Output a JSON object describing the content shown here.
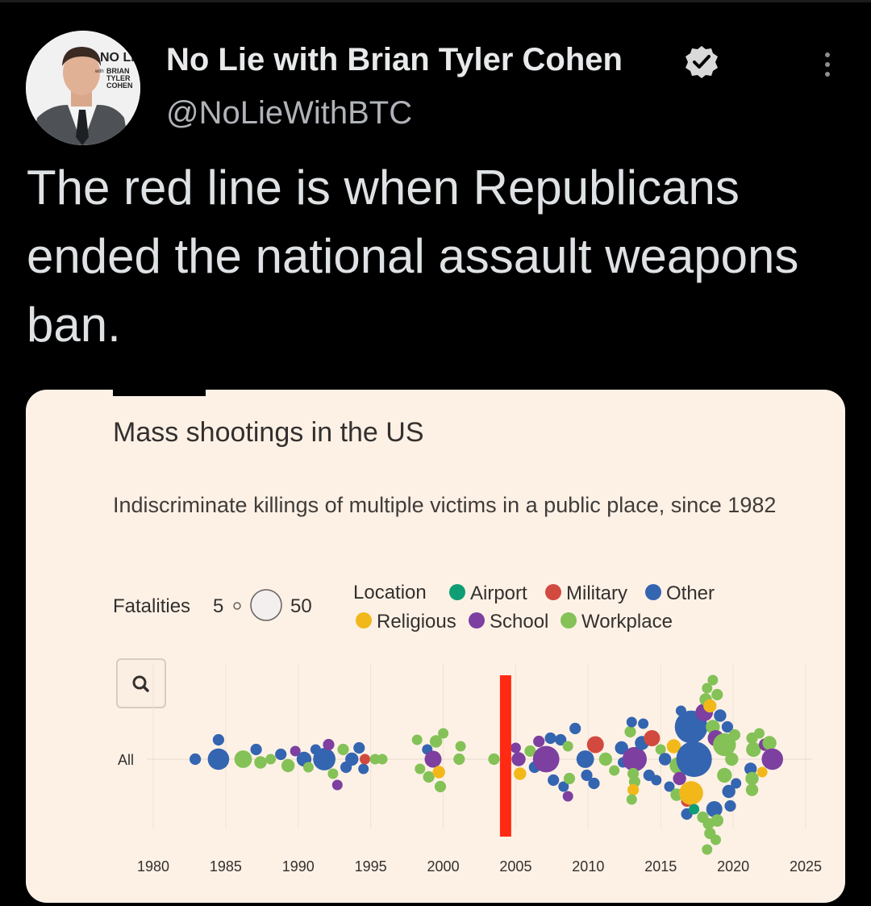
{
  "tweet": {
    "author_name": "No Lie with Brian Tyler Cohen",
    "handle": "@NoLieWithBTC",
    "text": "The red line is when Republicans ended the national assault weapons ban.",
    "avatar_logo_text": "NO LIE with BRIAN TYLER COHEN",
    "verified_icon": "verified-badge-icon",
    "menu_icon": "more-options-icon"
  },
  "colors": {
    "background": "#000000",
    "card": "#fdf1e6",
    "Airport": "#0f9d73",
    "Military": "#d2493f",
    "Other": "#3465b0",
    "Religious": "#f2b81a",
    "School": "#7d3fa0",
    "Workplace": "#84c257",
    "red_line": "#ff2a14"
  },
  "chart_data": {
    "type": "scatter",
    "subtype": "beeswarm",
    "title": "Mass shootings in the US",
    "subtitle": "Indiscriminate killings of multiple victims in a public place, since 1982",
    "size_legend": {
      "label": "Fatalities",
      "min": 5,
      "max": 50
    },
    "color_legend": {
      "title": "Location",
      "entries": [
        "Airport",
        "Military",
        "Other",
        "Religious",
        "School",
        "Workplace"
      ]
    },
    "row_label": "All",
    "x_ticks": [
      "1980",
      "1985",
      "1990",
      "1995",
      "2000",
      "2005",
      "2010",
      "2015",
      "2020",
      "2025"
    ],
    "xlim": [
      1980,
      2025
    ],
    "grid": true,
    "red_line_year": 2004.3,
    "points": [
      {
        "x": 1982.9,
        "o": 0,
        "f": 6,
        "c": "Other"
      },
      {
        "x": 1984.5,
        "o": -1.2,
        "f": 6,
        "c": "Other"
      },
      {
        "x": 1984.5,
        "o": 0,
        "f": 21,
        "c": "Other"
      },
      {
        "x": 1986.2,
        "o": 0,
        "f": 14,
        "c": "Workplace"
      },
      {
        "x": 1987.1,
        "o": -0.6,
        "f": 6,
        "c": "Other"
      },
      {
        "x": 1987.4,
        "o": 0.2,
        "f": 7,
        "c": "Workplace"
      },
      {
        "x": 1988.1,
        "o": 0,
        "f": 5,
        "c": "Workplace"
      },
      {
        "x": 1988.8,
        "o": -0.3,
        "f": 6,
        "c": "Other"
      },
      {
        "x": 1989.3,
        "o": 0.4,
        "f": 8,
        "c": "Workplace"
      },
      {
        "x": 1989.8,
        "o": -0.5,
        "f": 5,
        "c": "School"
      },
      {
        "x": 1990.4,
        "o": 0,
        "f": 10,
        "c": "Other"
      },
      {
        "x": 1990.7,
        "o": 0.5,
        "f": 5,
        "c": "Workplace"
      },
      {
        "x": 1991.2,
        "o": -0.6,
        "f": 5,
        "c": "Other"
      },
      {
        "x": 1991.8,
        "o": 0,
        "f": 23,
        "c": "Other"
      },
      {
        "x": 1992.1,
        "o": -0.9,
        "f": 6,
        "c": "School"
      },
      {
        "x": 1992.4,
        "o": 0.9,
        "f": 5,
        "c": "Workplace"
      },
      {
        "x": 1992.7,
        "o": 1.6,
        "f": 5,
        "c": "School"
      },
      {
        "x": 1993.1,
        "o": -0.6,
        "f": 6,
        "c": "Workplace"
      },
      {
        "x": 1993.3,
        "o": 0.5,
        "f": 6,
        "c": "Other"
      },
      {
        "x": 1993.7,
        "o": 0,
        "f": 8,
        "c": "Other"
      },
      {
        "x": 1994.2,
        "o": -0.7,
        "f": 6,
        "c": "Other"
      },
      {
        "x": 1994.5,
        "o": 0.6,
        "f": 5,
        "c": "Other"
      },
      {
        "x": 1994.6,
        "o": 0,
        "f": 5,
        "c": "Military"
      },
      {
        "x": 1995.3,
        "o": 0,
        "f": 5,
        "c": "Workplace"
      },
      {
        "x": 1995.8,
        "o": 0,
        "f": 5,
        "c": "Workplace"
      },
      {
        "x": 1998.2,
        "o": -1.2,
        "f": 5,
        "c": "Workplace"
      },
      {
        "x": 1998.4,
        "o": 0.6,
        "f": 5,
        "c": "Workplace"
      },
      {
        "x": 1998.9,
        "o": -0.6,
        "f": 5,
        "c": "Other"
      },
      {
        "x": 1999.0,
        "o": 1.1,
        "f": 6,
        "c": "Workplace"
      },
      {
        "x": 1999.3,
        "o": 0,
        "f": 13,
        "c": "School"
      },
      {
        "x": 1999.5,
        "o": -1.1,
        "f": 7,
        "c": "Workplace"
      },
      {
        "x": 1999.7,
        "o": 0.8,
        "f": 7,
        "c": "Religious"
      },
      {
        "x": 1999.8,
        "o": 1.7,
        "f": 6,
        "c": "Workplace"
      },
      {
        "x": 2000.0,
        "o": -1.6,
        "f": 5,
        "c": "Workplace"
      },
      {
        "x": 2001.1,
        "o": 0,
        "f": 6,
        "c": "Workplace"
      },
      {
        "x": 2001.2,
        "o": -0.8,
        "f": 5,
        "c": "Workplace"
      },
      {
        "x": 2003.5,
        "o": 0,
        "f": 6,
        "c": "Workplace"
      },
      {
        "x": 2005.0,
        "o": -0.7,
        "f": 5,
        "c": "School"
      },
      {
        "x": 2005.2,
        "o": 0,
        "f": 9,
        "c": "School"
      },
      {
        "x": 2005.3,
        "o": 0.9,
        "f": 7,
        "c": "Religious"
      },
      {
        "x": 2006.0,
        "o": -0.5,
        "f": 6,
        "c": "Workplace"
      },
      {
        "x": 2006.3,
        "o": 0.5,
        "f": 6,
        "c": "Other"
      },
      {
        "x": 2006.6,
        "o": -1.1,
        "f": 6,
        "c": "School"
      },
      {
        "x": 2007.1,
        "o": 0,
        "f": 32,
        "c": "School"
      },
      {
        "x": 2007.4,
        "o": -1.3,
        "f": 6,
        "c": "Other"
      },
      {
        "x": 2007.6,
        "o": 1.3,
        "f": 6,
        "c": "Other"
      },
      {
        "x": 2008.1,
        "o": -1.2,
        "f": 6,
        "c": "Other"
      },
      {
        "x": 2008.3,
        "o": 1.7,
        "f": 5,
        "c": "Other"
      },
      {
        "x": 2008.6,
        "o": -0.8,
        "f": 5,
        "c": "Workplace"
      },
      {
        "x": 2008.7,
        "o": 1.2,
        "f": 6,
        "c": "Workplace"
      },
      {
        "x": 2008.6,
        "o": 2.3,
        "f": 5,
        "c": "School"
      },
      {
        "x": 2009.1,
        "o": -1.9,
        "f": 6,
        "c": "Other"
      },
      {
        "x": 2009.8,
        "o": 0,
        "f": 14,
        "c": "Other"
      },
      {
        "x": 2009.9,
        "o": 1.0,
        "f": 6,
        "c": "Other"
      },
      {
        "x": 2010.5,
        "o": -0.9,
        "f": 13,
        "c": "Military"
      },
      {
        "x": 2010.4,
        "o": 1.5,
        "f": 6,
        "c": "Other"
      },
      {
        "x": 2011.2,
        "o": 0,
        "f": 8,
        "c": "Workplace"
      },
      {
        "x": 2011.8,
        "o": 0.7,
        "f": 5,
        "c": "Workplace"
      },
      {
        "x": 2012.3,
        "o": -0.7,
        "f": 8,
        "c": "Other"
      },
      {
        "x": 2012.4,
        "o": 0.2,
        "f": 5,
        "c": "Other"
      },
      {
        "x": 2012.9,
        "o": -1.7,
        "f": 6,
        "c": "Workplace"
      },
      {
        "x": 2013.0,
        "o": -2.3,
        "f": 5,
        "c": "Other"
      },
      {
        "x": 2013.2,
        "o": 0,
        "f": 27,
        "c": "School"
      },
      {
        "x": 2013.1,
        "o": 0.9,
        "f": 6,
        "c": "Workplace"
      },
      {
        "x": 2013.2,
        "o": 1.4,
        "f": 6,
        "c": "Workplace"
      },
      {
        "x": 2013.1,
        "o": 1.9,
        "f": 6,
        "c": "Religious"
      },
      {
        "x": 2013.0,
        "o": 2.5,
        "f": 5,
        "c": "Workplace"
      },
      {
        "x": 2013.7,
        "o": -1.0,
        "f": 9,
        "c": "Other"
      },
      {
        "x": 2013.8,
        "o": -2.2,
        "f": 5,
        "c": "Other"
      },
      {
        "x": 2014.2,
        "o": 1.0,
        "f": 6,
        "c": "Other"
      },
      {
        "x": 2014.4,
        "o": -1.3,
        "f": 12,
        "c": "Military"
      },
      {
        "x": 2014.7,
        "o": 1.3,
        "f": 5,
        "c": "Other"
      },
      {
        "x": 2015.0,
        "o": -0.6,
        "f": 5,
        "c": "Workplace"
      },
      {
        "x": 2015.3,
        "o": 0,
        "f": 7,
        "c": "Other"
      },
      {
        "x": 2015.6,
        "o": 1.7,
        "f": 5,
        "c": "Other"
      },
      {
        "x": 2015.9,
        "o": -0.8,
        "f": 9,
        "c": "Religious"
      },
      {
        "x": 2016.2,
        "o": 0.4,
        "f": 13,
        "c": "Workplace"
      },
      {
        "x": 2016.3,
        "o": 1.2,
        "f": 8,
        "c": "School"
      },
      {
        "x": 2016.1,
        "o": 2.2,
        "f": 7,
        "c": "Workplace"
      },
      {
        "x": 2016.5,
        "o": -2.3,
        "f": 7,
        "c": "Workplace"
      },
      {
        "x": 2016.4,
        "o": -3.0,
        "f": 5,
        "c": "Other"
      },
      {
        "x": 2016.8,
        "o": 2.6,
        "f": 6,
        "c": "Military"
      },
      {
        "x": 2017.1,
        "o": -2.0,
        "f": 49,
        "c": "Other"
      },
      {
        "x": 2017.3,
        "o": 0,
        "f": 58,
        "c": "Other"
      },
      {
        "x": 2017.1,
        "o": 2.1,
        "f": 26,
        "c": "Religious"
      },
      {
        "x": 2016.8,
        "o": 3.4,
        "f": 6,
        "c": "Other"
      },
      {
        "x": 2017.3,
        "o": 3.1,
        "f": 5,
        "c": "Airport"
      },
      {
        "x": 2017.9,
        "o": 3.6,
        "f": 6,
        "c": "Workplace"
      },
      {
        "x": 2018.0,
        "o": -2.9,
        "f": 14,
        "c": "School"
      },
      {
        "x": 2018.1,
        "o": -3.7,
        "f": 7,
        "c": "Workplace"
      },
      {
        "x": 2018.2,
        "o": -4.4,
        "f": 5,
        "c": "Workplace"
      },
      {
        "x": 2018.4,
        "o": -3.3,
        "f": 8,
        "c": "Religious"
      },
      {
        "x": 2018.6,
        "o": -2.0,
        "f": 9,
        "c": "Workplace"
      },
      {
        "x": 2018.8,
        "o": -1.3,
        "f": 12,
        "c": "School"
      },
      {
        "x": 2018.9,
        "o": -4.0,
        "f": 6,
        "c": "Workplace"
      },
      {
        "x": 2018.6,
        "o": -4.9,
        "f": 5,
        "c": "Workplace"
      },
      {
        "x": 2018.3,
        "o": 4.0,
        "f": 6,
        "c": "Workplace"
      },
      {
        "x": 2018.7,
        "o": 3.1,
        "f": 12,
        "c": "Other"
      },
      {
        "x": 2018.9,
        "o": 3.8,
        "f": 7,
        "c": "Workplace"
      },
      {
        "x": 2018.4,
        "o": 4.6,
        "f": 6,
        "c": "Workplace"
      },
      {
        "x": 2018.8,
        "o": 5.0,
        "f": 5,
        "c": "Workplace"
      },
      {
        "x": 2018.2,
        "o": 5.6,
        "f": 5,
        "c": "Workplace"
      },
      {
        "x": 2019.1,
        "o": -2.7,
        "f": 7,
        "c": "Other"
      },
      {
        "x": 2019.4,
        "o": -0.9,
        "f": 24,
        "c": "Workplace"
      },
      {
        "x": 2019.4,
        "o": 1.0,
        "f": 10,
        "c": "Workplace"
      },
      {
        "x": 2019.6,
        "o": -2.0,
        "f": 6,
        "c": "Other"
      },
      {
        "x": 2019.9,
        "o": 0,
        "f": 8,
        "c": "Workplace"
      },
      {
        "x": 2019.7,
        "o": 2.0,
        "f": 8,
        "c": "Other"
      },
      {
        "x": 2019.8,
        "o": 2.9,
        "f": 6,
        "c": "Other"
      },
      {
        "x": 2020.1,
        "o": -1.5,
        "f": 6,
        "c": "Workplace"
      },
      {
        "x": 2020.2,
        "o": 1.5,
        "f": 5,
        "c": "Other"
      },
      {
        "x": 2021.3,
        "o": -1.3,
        "f": 6,
        "c": "Workplace"
      },
      {
        "x": 2021.4,
        "o": -0.6,
        "f": 10,
        "c": "Workplace"
      },
      {
        "x": 2021.2,
        "o": 0.6,
        "f": 7,
        "c": "Other"
      },
      {
        "x": 2021.3,
        "o": 1.2,
        "f": 8,
        "c": "Workplace"
      },
      {
        "x": 2021.3,
        "o": 1.9,
        "f": 7,
        "c": "Workplace"
      },
      {
        "x": 2021.8,
        "o": -1.6,
        "f": 5,
        "c": "Workplace"
      },
      {
        "x": 2022.0,
        "o": 0.8,
        "f": 5,
        "c": "Religious"
      },
      {
        "x": 2022.2,
        "o": -0.9,
        "f": 7,
        "c": "School"
      },
      {
        "x": 2022.5,
        "o": -1.0,
        "f": 9,
        "c": "Workplace"
      },
      {
        "x": 2022.7,
        "o": 0,
        "f": 21,
        "c": "School"
      }
    ]
  }
}
